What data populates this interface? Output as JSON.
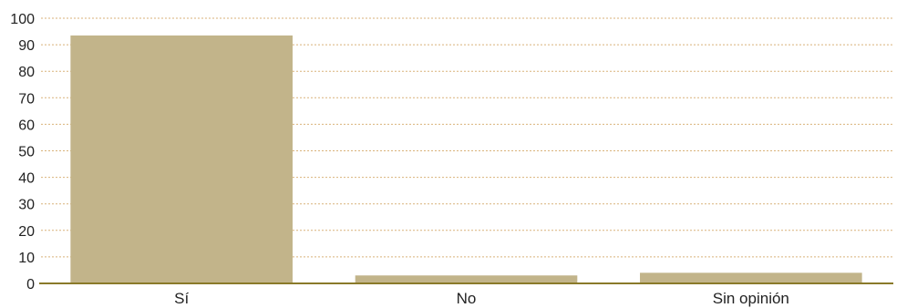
{
  "chart_data": {
    "type": "bar",
    "categories": [
      "Sí",
      "No",
      "Sin opinión"
    ],
    "values": [
      93.5,
      3,
      4
    ],
    "title": "",
    "xlabel": "",
    "ylabel": "",
    "ylim": [
      0,
      100
    ],
    "yticks": [
      0,
      10,
      20,
      30,
      40,
      50,
      60,
      70,
      80,
      90,
      100
    ],
    "grid": true,
    "colors": {
      "bar": "#c2b48a",
      "grid": "#d9b27a",
      "axis": "#8a7a2a"
    }
  }
}
